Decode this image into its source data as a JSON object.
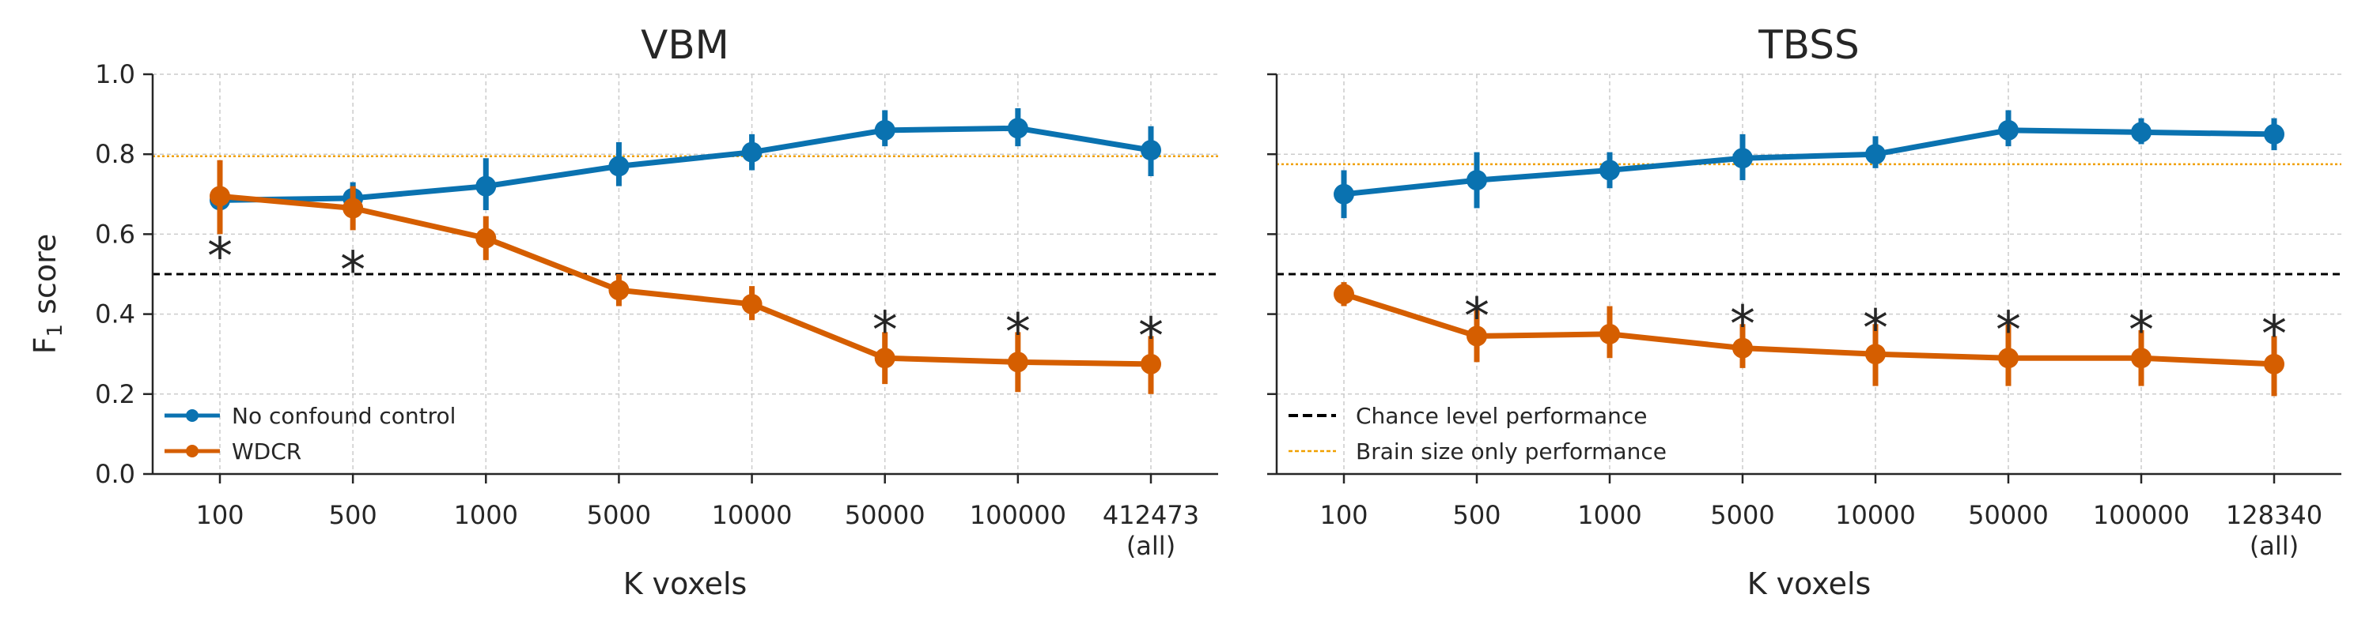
{
  "colors": {
    "no_confound": "#0a72b0",
    "wdcr": "#d55e00",
    "chance": "#000000",
    "brain_size": "#f0a000",
    "grid": "#cccccc",
    "axis": "#262626"
  },
  "chart_data": [
    {
      "type": "line",
      "title": "VBM",
      "xlabel": "K voxels",
      "ylabel": "F1 score",
      "categories": [
        "100",
        "500",
        "1000",
        "5000",
        "10000",
        "50000",
        "100000",
        "412473"
      ],
      "category_sublabels": [
        "",
        "",
        "",
        "",
        "",
        "",
        "",
        "(all)"
      ],
      "ylim": [
        0,
        1
      ],
      "yticks": [
        "0.0",
        "0.2",
        "0.4",
        "0.6",
        "0.8",
        "1.0"
      ],
      "grid": true,
      "series": [
        {
          "name": "No confound control",
          "values": [
            0.685,
            0.69,
            0.72,
            0.77,
            0.805,
            0.86,
            0.865,
            0.81
          ],
          "err_low": [
            0.63,
            0.65,
            0.66,
            0.72,
            0.76,
            0.82,
            0.82,
            0.745
          ],
          "err_high": [
            0.74,
            0.73,
            0.79,
            0.83,
            0.85,
            0.91,
            0.915,
            0.87
          ]
        },
        {
          "name": "WDCR",
          "values": [
            0.695,
            0.665,
            0.59,
            0.46,
            0.425,
            0.29,
            0.28,
            0.275
          ],
          "err_low": [
            0.6,
            0.61,
            0.535,
            0.42,
            0.385,
            0.225,
            0.205,
            0.2
          ],
          "err_high": [
            0.785,
            0.72,
            0.645,
            0.5,
            0.47,
            0.355,
            0.355,
            0.345
          ]
        }
      ],
      "reference_lines": {
        "chance": 0.5,
        "brain_size": 0.795
      },
      "significance_markers": [
        {
          "x": "100",
          "y": 0.58
        },
        {
          "x": "500",
          "y": 0.545
        },
        {
          "x": "50000",
          "y": 0.395
        },
        {
          "x": "100000",
          "y": 0.39
        },
        {
          "x": "412473",
          "y": 0.38
        }
      ],
      "legend": [
        {
          "label": "No confound control",
          "style": "series-no-confound"
        },
        {
          "label": "WDCR",
          "style": "series-wdcr"
        }
      ],
      "legend_location": "lower-left"
    },
    {
      "type": "line",
      "title": "TBSS",
      "xlabel": "K voxels",
      "ylabel": "",
      "categories": [
        "100",
        "500",
        "1000",
        "5000",
        "10000",
        "50000",
        "100000",
        "128340"
      ],
      "category_sublabels": [
        "",
        "",
        "",
        "",
        "",
        "",
        "",
        "(all)"
      ],
      "ylim": [
        0,
        1
      ],
      "grid": true,
      "series": [
        {
          "name": "No confound control",
          "values": [
            0.7,
            0.735,
            0.76,
            0.79,
            0.8,
            0.86,
            0.855,
            0.85
          ],
          "err_low": [
            0.64,
            0.665,
            0.715,
            0.735,
            0.765,
            0.82,
            0.825,
            0.81
          ],
          "err_high": [
            0.76,
            0.805,
            0.805,
            0.85,
            0.845,
            0.91,
            0.89,
            0.89
          ]
        },
        {
          "name": "WDCR",
          "values": [
            0.45,
            0.345,
            0.35,
            0.315,
            0.3,
            0.29,
            0.29,
            0.275
          ],
          "err_low": [
            0.42,
            0.28,
            0.29,
            0.265,
            0.22,
            0.22,
            0.22,
            0.195
          ],
          "err_high": [
            0.48,
            0.41,
            0.42,
            0.375,
            0.375,
            0.375,
            0.36,
            0.345
          ]
        }
      ],
      "reference_lines": {
        "chance": 0.5,
        "brain_size": 0.775
      },
      "significance_markers": [
        {
          "x": "500",
          "y": 0.43
        },
        {
          "x": "5000",
          "y": 0.41
        },
        {
          "x": "10000",
          "y": 0.4
        },
        {
          "x": "50000",
          "y": 0.395
        },
        {
          "x": "100000",
          "y": 0.395
        },
        {
          "x": "128340",
          "y": 0.385
        }
      ],
      "legend": [
        {
          "label": "Chance level performance",
          "style": "chance-line"
        },
        {
          "label": "Brain size only performance",
          "style": "brain-size-line"
        }
      ],
      "legend_location": "lower-left"
    }
  ]
}
